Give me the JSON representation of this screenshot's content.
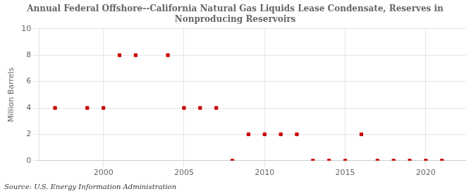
{
  "chart_data": {
    "type": "scatter",
    "title": "Annual Federal Offshore--California Natural Gas Liquids Lease Condensate, Reserves in\nNonproducing Reservoirs",
    "ylabel": "Million Barrels",
    "annotation": "Source: U.S. Energy Information Administration",
    "x": [
      1997,
      1999,
      2000,
      2001,
      2002,
      2004,
      2005,
      2006,
      2007,
      2008,
      2009,
      2010,
      2011,
      2012,
      2013,
      2014,
      2015,
      2016,
      2017,
      2018,
      2019,
      2020,
      2021
    ],
    "values": [
      4,
      4,
      4,
      8,
      8,
      8,
      4,
      4,
      4,
      0,
      2,
      2,
      2,
      2,
      0,
      0,
      0,
      2,
      0,
      0,
      0,
      0,
      0
    ],
    "color": "#cc0000",
    "marker": "square",
    "xlim": [
      1996,
      2022.5
    ],
    "xticks": [
      2000,
      2005,
      2010,
      2015,
      2020
    ],
    "ylim": [
      0,
      10
    ],
    "yticks": [
      0,
      2,
      4,
      6,
      8,
      10
    ],
    "grid": true
  }
}
